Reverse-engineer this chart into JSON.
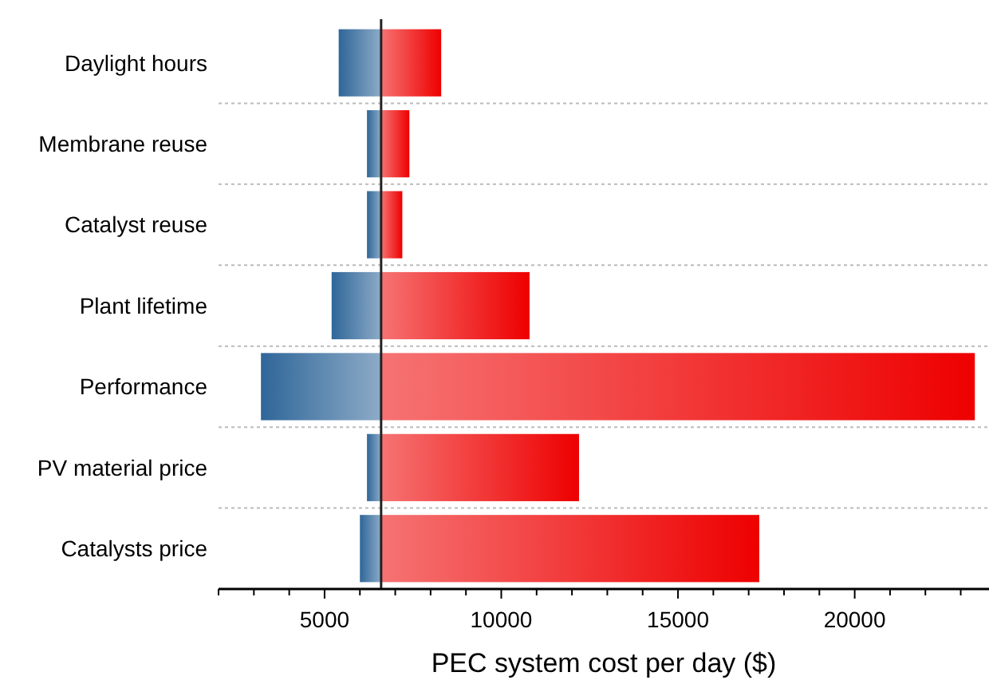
{
  "chart_data": {
    "type": "bar",
    "orientation": "horizontal",
    "xlabel": "PEC system cost per day ($)",
    "categories": [
      "Daylight hours",
      "Membrane reuse",
      "Catalyst reuse",
      "Plant lifetime",
      "Performance",
      "PV material price",
      "Catalysts price"
    ],
    "series": [
      {
        "color": "#2f6699",
        "base": [
          5400,
          6200,
          6200,
          5200,
          3200,
          6200,
          6000
        ],
        "values": [
          1200,
          400,
          400,
          1400,
          3400,
          400,
          600
        ]
      },
      {
        "color": "#ee0000",
        "base": [
          6600,
          6600,
          6600,
          6600,
          6600,
          6600,
          6600
        ],
        "values": [
          1700,
          800,
          600,
          4200,
          16800,
          5600,
          10700
        ]
      }
    ],
    "xlim": [
      2000,
      23800
    ],
    "xticks": [
      {
        "value": 2000,
        "label": null
      },
      {
        "value": 3000,
        "label": null
      },
      {
        "value": 4000,
        "label": null
      },
      5000,
      {
        "value": 6000,
        "label": null
      },
      {
        "value": 7000,
        "label": null
      },
      {
        "value": 8000,
        "label": null
      },
      {
        "value": 9000,
        "label": null
      },
      10000,
      {
        "value": 11000,
        "label": null
      },
      {
        "value": 12000,
        "label": null
      },
      {
        "value": 13000,
        "label": null
      },
      {
        "value": 14000,
        "label": null
      },
      15000,
      {
        "value": 16000,
        "label": null
      },
      {
        "value": 17000,
        "label": null
      },
      {
        "value": 18000,
        "label": null
      },
      {
        "value": 19000,
        "label": null
      },
      20000,
      {
        "value": 21000,
        "label": null
      },
      {
        "value": 22000,
        "label": null
      },
      {
        "value": 23000,
        "label": null
      }
    ],
    "ref_lines": [
      {
        "axis": "x",
        "value": 6600,
        "color": "#222222"
      }
    ],
    "grid": "y"
  }
}
